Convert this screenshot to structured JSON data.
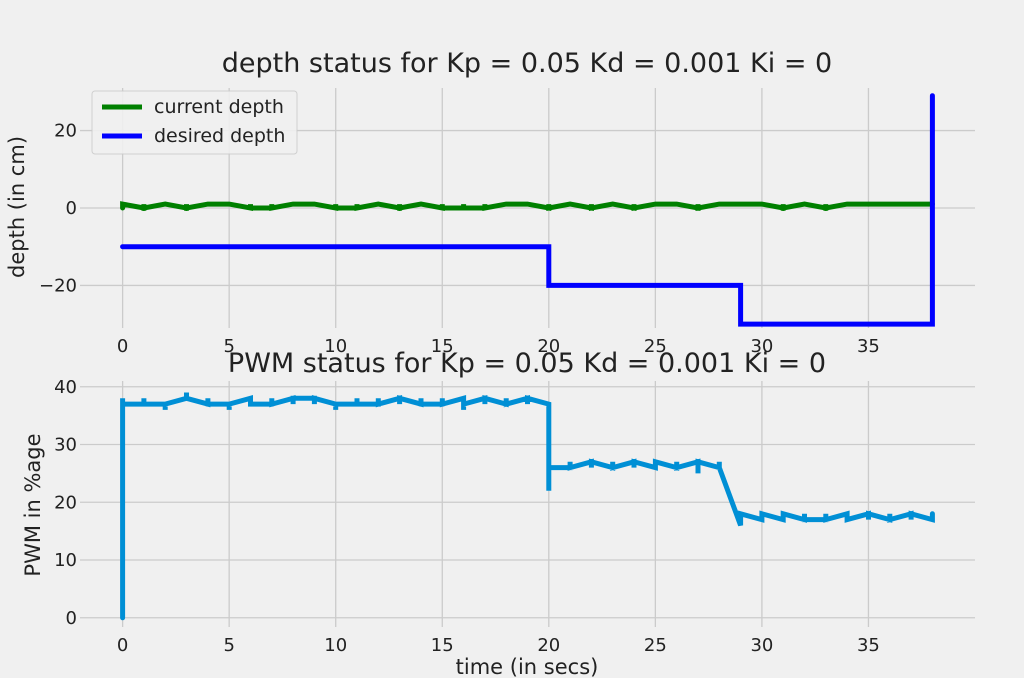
{
  "colors": {
    "figure_bg": "#f0f0f0",
    "grid": "#cbcbcb",
    "current_depth": "#008000",
    "desired_depth": "#0000ff",
    "pwm": "#008fd5",
    "text": "#222222"
  },
  "chart_data": [
    {
      "type": "line",
      "title": "depth status for Kp = 0.05 Kd = 0.001 Ki = 0",
      "xlabel": "",
      "ylabel": "depth (in cm)",
      "xlim": [
        -2,
        40
      ],
      "ylim": [
        -31,
        31
      ],
      "xticks": [
        0,
        5,
        10,
        15,
        20,
        25,
        30,
        35
      ],
      "yticks": [
        -20,
        0,
        20
      ],
      "grid": true,
      "legend_position": "upper-left",
      "series": [
        {
          "name": "current depth",
          "color": "#008000",
          "x": [
            0,
            0,
            0,
            1,
            1,
            1,
            2,
            2,
            3,
            3,
            3,
            4,
            4,
            4,
            5,
            5,
            5,
            6,
            6,
            6,
            7,
            7,
            7,
            8,
            8,
            8,
            9,
            9,
            9,
            10,
            10,
            10,
            11,
            11,
            11,
            12,
            12,
            12,
            13,
            13,
            13,
            14,
            14,
            14,
            15,
            15,
            15,
            16,
            16,
            16,
            17,
            17,
            17,
            18,
            18,
            18,
            19,
            19,
            19,
            20,
            20,
            20,
            21,
            21,
            21,
            22,
            22,
            22,
            23,
            23,
            23,
            24,
            24,
            24,
            25,
            25,
            25,
            26,
            26,
            26,
            27,
            27,
            27,
            28,
            28,
            28,
            29,
            29,
            29,
            30,
            30,
            30,
            31,
            31,
            31,
            32,
            32,
            32,
            33,
            33,
            33,
            34,
            34,
            34,
            35,
            35,
            35,
            36,
            36,
            36,
            37,
            37,
            37,
            38
          ],
          "y": [
            0,
            1,
            1,
            0,
            1,
            0,
            1,
            1,
            0,
            1,
            0,
            1,
            1,
            1,
            1,
            1,
            1,
            0,
            1,
            0,
            0,
            1,
            0,
            1,
            1,
            1,
            1,
            1,
            1,
            0,
            1,
            0,
            0,
            1,
            0,
            1,
            1,
            1,
            0,
            1,
            0,
            1,
            1,
            1,
            0,
            1,
            0,
            0,
            1,
            0,
            0,
            1,
            0,
            1,
            1,
            1,
            1,
            1,
            1,
            0,
            1,
            0,
            1,
            1,
            1,
            0,
            1,
            0,
            1,
            1,
            1,
            0,
            1,
            0,
            1,
            1,
            1,
            1,
            1,
            1,
            0,
            1,
            0,
            1,
            1,
            1,
            1,
            1,
            1,
            1,
            1,
            1,
            0,
            1,
            0,
            1,
            1,
            1,
            0,
            1,
            0,
            1,
            1,
            1,
            1,
            1,
            1,
            1,
            1,
            1,
            1,
            1,
            1,
            1
          ]
        },
        {
          "name": "desired depth",
          "color": "#0000ff",
          "x": [
            0,
            20,
            20,
            29,
            29,
            38,
            38
          ],
          "y": [
            -10,
            -10,
            -20,
            -20,
            -30,
            -30,
            29
          ]
        }
      ]
    },
    {
      "type": "line",
      "title": "PWM status for Kp = 0.05 Kd = 0.001 Ki = 0",
      "xlabel": "time (in secs)",
      "ylabel": "PWM in %age",
      "xlim": [
        -2,
        40
      ],
      "ylim": [
        -1.6,
        41
      ],
      "xticks": [
        0,
        5,
        10,
        15,
        20,
        25,
        30,
        35
      ],
      "yticks": [
        0,
        10,
        20,
        30,
        40
      ],
      "grid": true,
      "series": [
        {
          "name": "",
          "color": "#008fd5",
          "x": [
            0,
            0,
            0,
            1,
            1,
            1,
            2,
            2,
            2,
            3,
            3,
            3,
            4,
            4,
            4,
            5,
            5,
            5,
            6,
            6,
            6,
            7,
            7,
            7,
            8,
            8,
            8,
            9,
            9,
            9,
            10,
            10,
            10,
            11,
            11,
            11,
            12,
            12,
            12,
            13,
            13,
            13,
            14,
            14,
            14,
            15,
            15,
            15,
            16,
            16,
            16,
            17,
            17,
            17,
            18,
            18,
            18,
            19,
            19,
            19,
            20,
            20,
            20,
            21,
            21,
            21,
            22,
            22,
            22,
            23,
            23,
            23,
            24,
            24,
            24,
            25,
            25,
            25,
            26,
            26,
            26,
            27,
            27,
            27,
            28,
            28,
            28,
            29,
            29,
            29,
            30,
            30,
            30,
            31,
            31,
            31,
            32,
            32,
            32,
            33,
            33,
            33,
            34,
            34,
            34,
            35,
            35,
            35,
            36,
            36,
            36,
            37,
            37,
            37,
            38,
            38
          ],
          "y": [
            0,
            38,
            37,
            37,
            38,
            37,
            37,
            36,
            37,
            38,
            39,
            38,
            37,
            38,
            37,
            37,
            36,
            37,
            38,
            37,
            37,
            37,
            38,
            37,
            38,
            37,
            38,
            38,
            37,
            38,
            37,
            36,
            37,
            37,
            38,
            37,
            37,
            38,
            37,
            38,
            37,
            38,
            37,
            38,
            37,
            37,
            38,
            37,
            38,
            36,
            37,
            38,
            37,
            38,
            37,
            38,
            37,
            38,
            37,
            38,
            37,
            22,
            26,
            26,
            27,
            26,
            27,
            26,
            27,
            26,
            27,
            26,
            27,
            26,
            27,
            26,
            26,
            27,
            26,
            27,
            26,
            27,
            25,
            27,
            26,
            27,
            26,
            16,
            17,
            18,
            17,
            18,
            18,
            17,
            18,
            18,
            17,
            18,
            17,
            17,
            18,
            17,
            18,
            17,
            17,
            18,
            17,
            18,
            17,
            18,
            17,
            18,
            17,
            18,
            17,
            18
          ]
        }
      ]
    }
  ]
}
